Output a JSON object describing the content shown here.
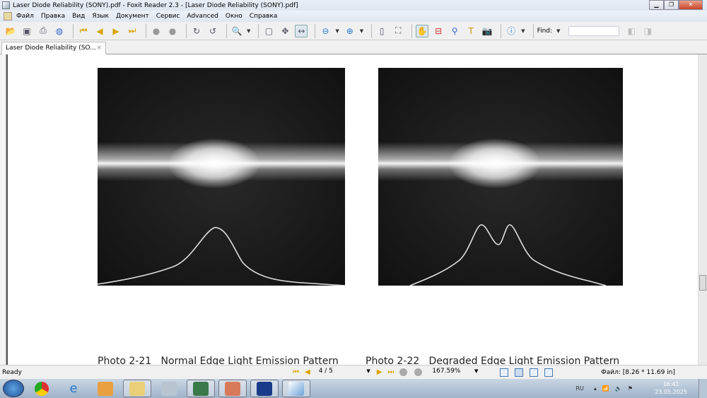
{
  "window": {
    "title": "Laser Diode Reliability (SONY).pdf - Foxit Reader 2.3 - [Laser Diode Reliability (SONY).pdf]",
    "minimize": "▁",
    "restore": "❐",
    "close": "✕"
  },
  "menu": [
    "Файл",
    "Правка",
    "Вид",
    "Язык",
    "Документ",
    "Сервис",
    "Advanced",
    "Окно",
    "Справка"
  ],
  "toolbar": {
    "find_label": "Find:",
    "find_value": ""
  },
  "tab": {
    "label": "Laser Diode Reliability (SO...",
    "close": "×"
  },
  "document": {
    "photos": [
      {
        "caption": "Photo 2-21   Normal Edge Light Emission Pattern",
        "pattern": "single-peak"
      },
      {
        "caption": "Photo 2-22   Degraded Edge Light Emission Pattern",
        "pattern": "double-peak"
      }
    ]
  },
  "status": {
    "ready": "Ready",
    "page": "4 / 5",
    "zoom": "167.59%",
    "file_info": "Файл: [8.26 * 11.69 in]"
  },
  "taskbar": {
    "lang": "RU",
    "time": "16:41",
    "date": "23.05.2025"
  }
}
